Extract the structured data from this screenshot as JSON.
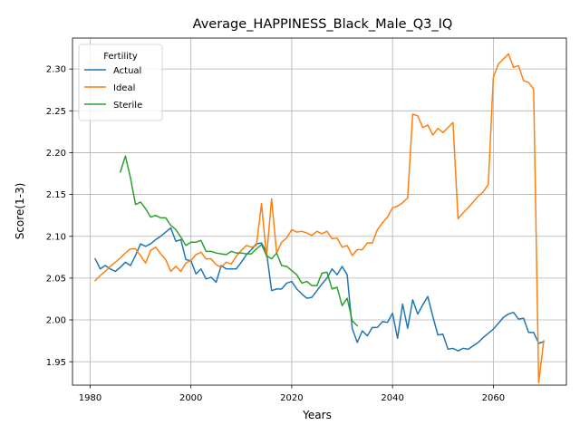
{
  "chart_data": {
    "type": "line",
    "title": "Average_HAPPINESS_Black_Male_Q3_IQ",
    "xlabel": "Years",
    "ylabel": "Score(1-3)",
    "xlim": [
      1976.5,
      2074.5
    ],
    "ylim": [
      1.922,
      2.337
    ],
    "xticks": [
      1980,
      2000,
      2020,
      2040,
      2060
    ],
    "yticks": [
      1.95,
      2.0,
      2.05,
      2.1,
      2.15,
      2.2,
      2.25,
      2.3
    ],
    "grid": true,
    "legend": {
      "title": "Fertility",
      "position": "top-left"
    },
    "series": [
      {
        "name": "Actual",
        "color": "#1f77b4",
        "x": [
          1981,
          1982,
          1983,
          1984,
          1985,
          1986,
          1987,
          1988,
          1989,
          1990,
          1991,
          1992,
          1993,
          1994,
          1995,
          1996,
          1997,
          1998,
          1999,
          2000,
          2001,
          2002,
          2003,
          2004,
          2005,
          2006,
          2007,
          2008,
          2009,
          2010,
          2011,
          2012,
          2013,
          2014,
          2015,
          2016,
          2017,
          2018,
          2019,
          2020,
          2021,
          2022,
          2023,
          2024,
          2025,
          2026,
          2027,
          2028,
          2029,
          2030,
          2031,
          2032,
          2033,
          2034,
          2035,
          2036,
          2037,
          2038,
          2039,
          2040,
          2041,
          2042,
          2043,
          2044,
          2045,
          2046,
          2047,
          2048,
          2049,
          2050,
          2051,
          2052,
          2053,
          2054,
          2055,
          2056,
          2057,
          2058,
          2059,
          2060,
          2061,
          2062,
          2063,
          2064,
          2065,
          2066,
          2067,
          2068,
          2069,
          2070
        ],
        "y": [
          2.073,
          2.061,
          2.065,
          2.061,
          2.058,
          2.063,
          2.069,
          2.065,
          2.077,
          2.091,
          2.088,
          2.091,
          2.096,
          2.1,
          2.105,
          2.11,
          2.094,
          2.096,
          2.072,
          2.071,
          2.055,
          2.061,
          2.049,
          2.051,
          2.045,
          2.065,
          2.061,
          2.061,
          2.061,
          2.069,
          2.078,
          2.084,
          2.091,
          2.092,
          2.081,
          2.035,
          2.037,
          2.037,
          2.044,
          2.046,
          2.037,
          2.031,
          2.026,
          2.027,
          2.035,
          2.043,
          2.05,
          2.061,
          2.054,
          2.064,
          2.054,
          1.99,
          1.973,
          1.987,
          1.981,
          1.991,
          1.991,
          1.998,
          1.997,
          2.008,
          1.978,
          2.019,
          1.99,
          2.024,
          2.007,
          2.018,
          2.028,
          2.004,
          1.982,
          1.983,
          1.965,
          1.966,
          1.963,
          1.966,
          1.965,
          1.969,
          1.973,
          1.979,
          1.984,
          1.989,
          1.996,
          2.003,
          2.007,
          2.009,
          2.001,
          2.002,
          1.985,
          1.985,
          1.972,
          1.974
        ]
      },
      {
        "name": "Ideal",
        "color": "#ff7f0e",
        "x": [
          1981,
          1982,
          1983,
          1984,
          1985,
          1986,
          1987,
          1988,
          1989,
          1990,
          1991,
          1992,
          1993,
          1994,
          1995,
          1996,
          1997,
          1998,
          1999,
          2000,
          2001,
          2002,
          2003,
          2004,
          2005,
          2006,
          2007,
          2008,
          2009,
          2010,
          2011,
          2012,
          2013,
          2014,
          2015,
          2016,
          2017,
          2018,
          2019,
          2020,
          2021,
          2022,
          2023,
          2024,
          2025,
          2026,
          2027,
          2028,
          2029,
          2030,
          2031,
          2032,
          2033,
          2034,
          2035,
          2036,
          2037,
          2038,
          2039,
          2040,
          2041,
          2042,
          2043,
          2044,
          2045,
          2046,
          2047,
          2048,
          2049,
          2050,
          2051,
          2052,
          2053,
          2054,
          2055,
          2056,
          2057,
          2058,
          2059,
          2060,
          2061,
          2062,
          2063,
          2064,
          2065,
          2066,
          2067,
          2068,
          2069,
          2070
        ],
        "y": [
          2.047,
          2.053,
          2.058,
          2.064,
          2.069,
          2.074,
          2.08,
          2.085,
          2.085,
          2.077,
          2.068,
          2.083,
          2.087,
          2.079,
          2.072,
          2.058,
          2.064,
          2.058,
          2.068,
          2.071,
          2.078,
          2.081,
          2.073,
          2.073,
          2.066,
          2.063,
          2.069,
          2.067,
          2.076,
          2.083,
          2.089,
          2.087,
          2.089,
          2.139,
          2.075,
          2.145,
          2.08,
          2.093,
          2.098,
          2.108,
          2.105,
          2.106,
          2.104,
          2.101,
          2.106,
          2.103,
          2.106,
          2.097,
          2.098,
          2.087,
          2.089,
          2.077,
          2.084,
          2.084,
          2.092,
          2.092,
          2.108,
          2.116,
          2.123,
          2.134,
          2.136,
          2.14,
          2.146,
          2.246,
          2.244,
          2.23,
          2.233,
          2.221,
          2.229,
          2.224,
          2.23,
          2.236,
          2.121,
          2.128,
          2.134,
          2.141,
          2.148,
          2.153,
          2.162,
          2.29,
          2.306,
          2.312,
          2.318,
          2.302,
          2.304,
          2.286,
          2.284,
          2.276,
          1.925,
          1.975
        ]
      },
      {
        "name": "Sterile",
        "color": "#2ca02c",
        "x": [
          1986,
          1987,
          1988,
          1989,
          1990,
          1991,
          1992,
          1993,
          1994,
          1995,
          1996,
          1997,
          1998,
          1999,
          2000,
          2001,
          2002,
          2003,
          2004,
          2005,
          2006,
          2007,
          2008,
          2009,
          2010,
          2011,
          2012,
          2013,
          2014,
          2015,
          2016,
          2017,
          2018,
          2019,
          2020,
          2021,
          2022,
          2023,
          2024,
          2025,
          2026,
          2027,
          2028,
          2029,
          2030,
          2031,
          2032,
          2033
        ],
        "y": [
          2.177,
          2.196,
          2.17,
          2.138,
          2.141,
          2.133,
          2.123,
          2.125,
          2.122,
          2.122,
          2.113,
          2.108,
          2.099,
          2.089,
          2.093,
          2.093,
          2.095,
          2.082,
          2.082,
          2.08,
          2.079,
          2.078,
          2.082,
          2.08,
          2.08,
          2.079,
          2.079,
          2.085,
          2.09,
          2.077,
          2.073,
          2.08,
          2.065,
          2.064,
          2.059,
          2.054,
          2.044,
          2.046,
          2.041,
          2.041,
          2.056,
          2.057,
          2.037,
          2.039,
          2.017,
          2.026,
          1.999,
          1.993
        ]
      }
    ]
  }
}
